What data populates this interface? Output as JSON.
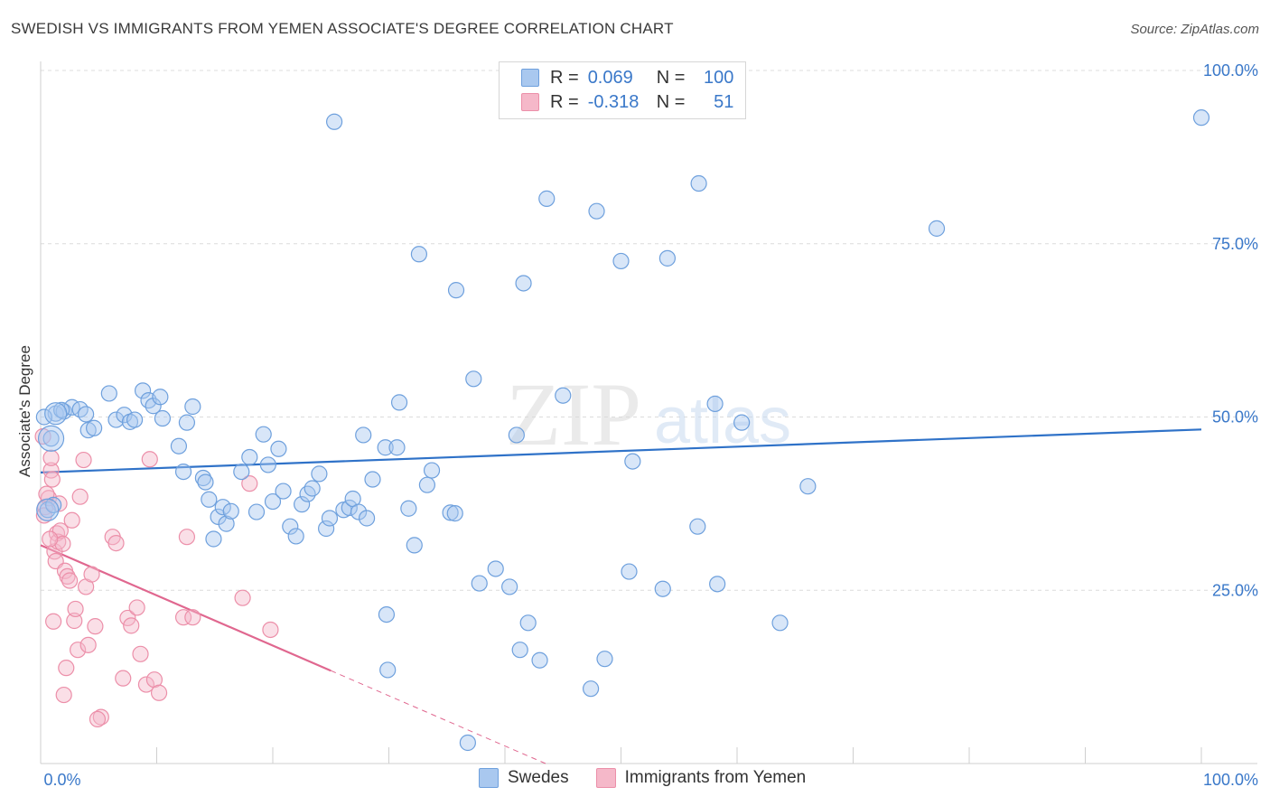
{
  "header": {
    "title": "SWEDISH VS IMMIGRANTS FROM YEMEN ASSOCIATE'S DEGREE CORRELATION CHART",
    "source": "Source: ZipAtlas.com"
  },
  "legend": {
    "rows": [
      {
        "r_label": "R =",
        "r_value": "0.069",
        "n_label": "N =",
        "n_value": "100",
        "color": "#a9c8ef"
      },
      {
        "r_label": "R =",
        "r_value": "-0.318",
        "n_label": "N =",
        "n_value": "51",
        "color": "#f5b8c9"
      }
    ]
  },
  "colors": {
    "swedes_fill": "#a9c8ef",
    "swedes_stroke": "#6ea0dd",
    "swedes_line": "#2f72c8",
    "yemen_fill": "#f5b8c9",
    "yemen_stroke": "#ec8fa9",
    "yemen_line": "#e0678f",
    "axis_text": "#3a78c9"
  },
  "watermark": {
    "part1": "ZIP",
    "part2": "atlas"
  },
  "chart_data": {
    "type": "scatter",
    "title": "SWEDISH VS IMMIGRANTS FROM YEMEN ASSOCIATE'S DEGREE CORRELATION CHART",
    "xlabel": "",
    "ylabel": "Associate's Degree",
    "xlim": [
      0,
      100
    ],
    "ylim": [
      0,
      100
    ],
    "x_tick_labels": [
      "0.0%",
      "100.0%"
    ],
    "y_tick_labels": [
      {
        "value": 25,
        "label": "25.0%"
      },
      {
        "value": 50,
        "label": "50.0%"
      },
      {
        "value": 75,
        "label": "75.0%"
      },
      {
        "value": 100,
        "label": "100.0%"
      }
    ],
    "grid": true,
    "legend_position": "bottom-center",
    "series": [
      {
        "name": "Swedes",
        "points": [
          [
            1.3,
            50.5
          ],
          [
            2.0,
            50.8
          ],
          [
            2.7,
            51.4
          ],
          [
            1.8,
            51.0
          ],
          [
            3.4,
            51.1
          ],
          [
            3.9,
            50.4
          ],
          [
            4.1,
            48.1
          ],
          [
            4.6,
            48.4
          ],
          [
            5.9,
            53.4
          ],
          [
            6.5,
            49.6
          ],
          [
            7.2,
            50.3
          ],
          [
            7.7,
            49.3
          ],
          [
            8.1,
            49.6
          ],
          [
            8.8,
            53.8
          ],
          [
            9.3,
            52.4
          ],
          [
            9.7,
            51.6
          ],
          [
            10.3,
            52.9
          ],
          [
            10.5,
            49.8
          ],
          [
            12.6,
            49.2
          ],
          [
            13.1,
            51.5
          ],
          [
            11.9,
            45.8
          ],
          [
            12.3,
            42.1
          ],
          [
            14.0,
            41.2
          ],
          [
            14.2,
            40.6
          ],
          [
            14.5,
            38.1
          ],
          [
            14.9,
            32.4
          ],
          [
            15.3,
            35.6
          ],
          [
            15.7,
            37.0
          ],
          [
            16.0,
            34.6
          ],
          [
            16.4,
            36.4
          ],
          [
            17.3,
            42.1
          ],
          [
            18.0,
            44.2
          ],
          [
            18.6,
            36.3
          ],
          [
            19.2,
            47.5
          ],
          [
            19.6,
            43.1
          ],
          [
            20.0,
            37.8
          ],
          [
            20.5,
            45.4
          ],
          [
            20.9,
            39.3
          ],
          [
            21.5,
            34.2
          ],
          [
            22.0,
            32.8
          ],
          [
            22.5,
            37.4
          ],
          [
            23.0,
            38.9
          ],
          [
            23.4,
            39.7
          ],
          [
            24.0,
            41.8
          ],
          [
            24.6,
            33.9
          ],
          [
            24.9,
            35.4
          ],
          [
            25.3,
            92.6
          ],
          [
            26.1,
            36.6
          ],
          [
            26.6,
            36.9
          ],
          [
            26.9,
            38.2
          ],
          [
            27.4,
            36.3
          ],
          [
            27.8,
            47.4
          ],
          [
            28.1,
            35.4
          ],
          [
            28.6,
            41.0
          ],
          [
            29.7,
            45.6
          ],
          [
            30.7,
            45.6
          ],
          [
            30.9,
            52.1
          ],
          [
            31.7,
            36.8
          ],
          [
            32.2,
            31.5
          ],
          [
            32.6,
            73.5
          ],
          [
            33.3,
            40.2
          ],
          [
            33.7,
            42.3
          ],
          [
            35.3,
            36.2
          ],
          [
            35.7,
            36.1
          ],
          [
            35.8,
            68.3
          ],
          [
            37.3,
            55.5
          ],
          [
            37.8,
            26.0
          ],
          [
            39.2,
            28.1
          ],
          [
            40.4,
            25.5
          ],
          [
            41.0,
            47.4
          ],
          [
            41.6,
            69.3
          ],
          [
            42.0,
            20.3
          ],
          [
            41.3,
            16.4
          ],
          [
            43.0,
            14.9
          ],
          [
            43.6,
            81.5
          ],
          [
            45.0,
            53.1
          ],
          [
            47.4,
            10.8
          ],
          [
            47.9,
            79.7
          ],
          [
            48.6,
            15.1
          ],
          [
            50.0,
            72.5
          ],
          [
            50.7,
            27.7
          ],
          [
            51.0,
            43.6
          ],
          [
            53.6,
            25.2
          ],
          [
            54.0,
            72.9
          ],
          [
            56.6,
            34.2
          ],
          [
            56.7,
            83.7
          ],
          [
            58.1,
            51.9
          ],
          [
            58.3,
            25.9
          ],
          [
            60.4,
            49.2
          ],
          [
            63.7,
            20.3
          ],
          [
            66.1,
            40.0
          ],
          [
            77.2,
            77.2
          ],
          [
            100.0,
            93.2
          ],
          [
            0.9,
            46.9
          ],
          [
            0.6,
            36.6
          ],
          [
            1.1,
            37.3
          ],
          [
            0.3,
            50.0
          ],
          [
            29.8,
            21.5
          ],
          [
            36.8,
            3.0
          ],
          [
            29.9,
            13.5
          ]
        ]
      },
      {
        "name": "Immigrants from Yemen",
        "points": [
          [
            0.2,
            47.2
          ],
          [
            0.4,
            37.0
          ],
          [
            0.7,
            38.3
          ],
          [
            0.9,
            42.3
          ],
          [
            0.9,
            44.1
          ],
          [
            1.2,
            30.6
          ],
          [
            1.3,
            29.2
          ],
          [
            1.4,
            33.2
          ],
          [
            1.5,
            32.0
          ],
          [
            1.7,
            33.6
          ],
          [
            1.9,
            31.7
          ],
          [
            2.1,
            27.8
          ],
          [
            2.3,
            27.0
          ],
          [
            2.5,
            26.4
          ],
          [
            2.7,
            35.1
          ],
          [
            2.9,
            20.6
          ],
          [
            3.0,
            22.3
          ],
          [
            3.2,
            16.4
          ],
          [
            3.4,
            38.5
          ],
          [
            3.7,
            43.8
          ],
          [
            3.9,
            25.5
          ],
          [
            4.1,
            17.1
          ],
          [
            4.4,
            27.3
          ],
          [
            4.7,
            19.8
          ],
          [
            5.2,
            6.7
          ],
          [
            6.2,
            32.7
          ],
          [
            6.5,
            31.8
          ],
          [
            7.1,
            12.3
          ],
          [
            7.5,
            21.0
          ],
          [
            7.8,
            19.9
          ],
          [
            8.3,
            22.5
          ],
          [
            8.6,
            15.8
          ],
          [
            9.1,
            11.4
          ],
          [
            9.4,
            43.9
          ],
          [
            9.8,
            12.1
          ],
          [
            10.2,
            10.2
          ],
          [
            12.3,
            21.1
          ],
          [
            12.6,
            32.7
          ],
          [
            13.1,
            21.1
          ],
          [
            17.4,
            23.9
          ],
          [
            18.0,
            40.4
          ],
          [
            19.8,
            19.3
          ],
          [
            1.0,
            41.0
          ],
          [
            0.5,
            38.9
          ],
          [
            0.8,
            32.4
          ],
          [
            1.6,
            37.5
          ],
          [
            2.2,
            13.8
          ],
          [
            4.9,
            6.4
          ],
          [
            2.0,
            9.9
          ],
          [
            0.3,
            35.8
          ],
          [
            1.1,
            20.5
          ]
        ]
      }
    ],
    "trend_lines": [
      {
        "series": "Swedes",
        "from": [
          0,
          42.0
        ],
        "to": [
          100,
          48.2
        ],
        "style": "solid"
      },
      {
        "series": "Immigrants from Yemen",
        "from": [
          0,
          31.5
        ],
        "to": [
          25.0,
          13.4
        ],
        "style": "solid"
      },
      {
        "series": "Immigrants from Yemen",
        "from": [
          25.0,
          13.4
        ],
        "to": [
          43.5,
          0
        ],
        "style": "dashed"
      }
    ]
  }
}
